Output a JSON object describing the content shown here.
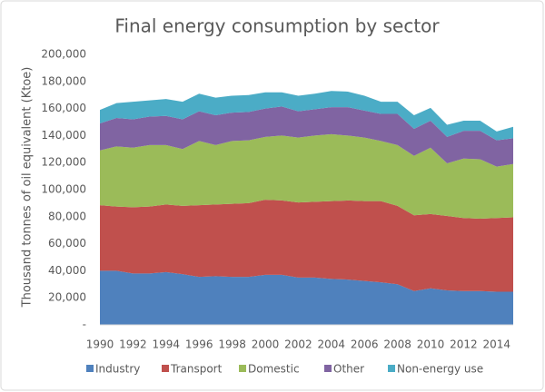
{
  "chart_data": {
    "type": "stacked_area",
    "title": "Final energy consumption by sector",
    "y_label": "Thousand tonnes of oil equivalent (Ktoe)",
    "x": [
      1990,
      1991,
      1992,
      1993,
      1994,
      1995,
      1996,
      1997,
      1998,
      1999,
      2000,
      2001,
      2002,
      2003,
      2004,
      2005,
      2006,
      2007,
      2008,
      2009,
      2010,
      2011,
      2012,
      2013,
      2014,
      2015
    ],
    "xlim": [
      1990,
      2015
    ],
    "xticks": [
      1990,
      1992,
      1994,
      1996,
      1998,
      2000,
      2002,
      2004,
      2006,
      2008,
      2010,
      2012,
      2014
    ],
    "ylim": [
      0,
      200000
    ],
    "yticks": [
      {
        "value": 0,
        "label": "-"
      },
      {
        "value": 20000,
        "label": "20,000"
      },
      {
        "value": 40000,
        "label": "40,000"
      },
      {
        "value": 60000,
        "label": "60,000"
      },
      {
        "value": 80000,
        "label": "80,000"
      },
      {
        "value": 100000,
        "label": "100,000"
      },
      {
        "value": 120000,
        "label": "120,000"
      },
      {
        "value": 140000,
        "label": "140,000"
      },
      {
        "value": 160000,
        "label": "160,000"
      },
      {
        "value": 180000,
        "label": "180,000"
      },
      {
        "value": 200000,
        "label": "200,000"
      }
    ],
    "legend": "bottom",
    "series": [
      {
        "name": "Industry",
        "color": "#4f81bd",
        "values": [
          40000,
          40000,
          38000,
          38000,
          39000,
          37500,
          35500,
          36000,
          35500,
          35500,
          37000,
          37000,
          35000,
          35000,
          34000,
          33500,
          32500,
          31500,
          30000,
          25000,
          27000,
          25500,
          25000,
          25000,
          24500,
          24500
        ]
      },
      {
        "name": "Transport",
        "color": "#c0504d",
        "values": [
          48500,
          47500,
          49000,
          49500,
          50000,
          50500,
          53000,
          53000,
          54000,
          54500,
          55500,
          55000,
          55500,
          56000,
          57500,
          58500,
          59000,
          60000,
          58000,
          56000,
          55000,
          55000,
          54000,
          53500,
          54500,
          55000
        ]
      },
      {
        "name": "Domestic",
        "color": "#9bbb59",
        "values": [
          40500,
          44500,
          44000,
          45500,
          44000,
          42000,
          47500,
          44000,
          46500,
          46500,
          46500,
          48000,
          48000,
          49000,
          49500,
          48000,
          47000,
          44500,
          45000,
          44000,
          49000,
          39000,
          44000,
          44000,
          38000,
          39500
        ]
      },
      {
        "name": "Other",
        "color": "#8064a2",
        "values": [
          20000,
          21000,
          21000,
          21000,
          21500,
          22000,
          22000,
          22000,
          21000,
          21000,
          21000,
          21500,
          19500,
          19500,
          20000,
          21000,
          20000,
          20000,
          23000,
          20000,
          20000,
          19500,
          20500,
          21000,
          19500,
          19000
        ]
      },
      {
        "name": "Non-energy use",
        "color": "#4bacc6",
        "values": [
          10000,
          11000,
          13000,
          12000,
          12500,
          13000,
          13000,
          13000,
          12500,
          12500,
          12000,
          10500,
          11500,
          11500,
          12000,
          11500,
          11000,
          9000,
          9000,
          10000,
          9500,
          9000,
          7500,
          7500,
          6500,
          8500
        ]
      }
    ]
  }
}
